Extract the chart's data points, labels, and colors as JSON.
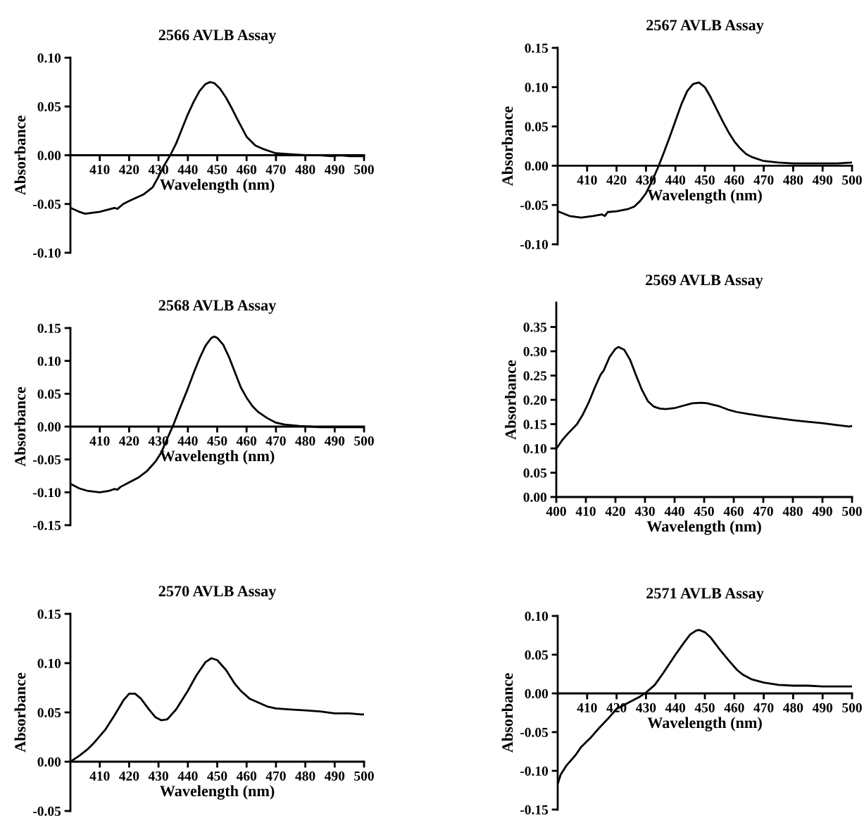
{
  "chart_data": [
    {
      "type": "line",
      "title": "2566 AVLB Assay",
      "xlabel": "Wavelength (nm)",
      "ylabel": "Absorbance",
      "xlim": [
        400,
        500
      ],
      "xticks": [
        410,
        420,
        430,
        440,
        450,
        460,
        470,
        480,
        490,
        500
      ],
      "ylim": [
        -0.1,
        0.1
      ],
      "yticks": [
        {
          "value": -0.1,
          "label": "-0.10"
        },
        {
          "value": -0.05,
          "label": "-0.05"
        },
        {
          "value": 0,
          "label": "0.00"
        },
        {
          "value": 0.05,
          "label": "0.05"
        },
        {
          "value": 0.1,
          "label": "0.10"
        }
      ],
      "grid": false,
      "legend": false,
      "series": [
        {
          "color": "#000000",
          "x": [
            400,
            403,
            405,
            410,
            415,
            416,
            418,
            420,
            425,
            428,
            430,
            432,
            434,
            436,
            438,
            440,
            442,
            444,
            446,
            447.5,
            449,
            451,
            453,
            455,
            457,
            460,
            463,
            466,
            468,
            470,
            475,
            480,
            485,
            489,
            492,
            495,
            500
          ],
          "values": [
            -0.054,
            -0.058,
            -0.06,
            -0.058,
            -0.054,
            -0.055,
            -0.05,
            -0.047,
            -0.04,
            -0.033,
            -0.022,
            -0.01,
            0.0,
            0.012,
            0.027,
            0.042,
            0.055,
            0.066,
            0.073,
            0.075,
            0.074,
            0.068,
            0.059,
            0.048,
            0.036,
            0.019,
            0.01,
            0.006,
            0.004,
            0.002,
            0.001,
            0.0,
            0.0,
            -0.001,
            0.0,
            -0.001,
            -0.001
          ]
        }
      ]
    },
    {
      "type": "line",
      "title": "2567 AVLB Assay",
      "xlabel": "Wavelength (nm)",
      "ylabel": "Absorbance",
      "xlim": [
        400,
        500
      ],
      "xticks": [
        410,
        420,
        430,
        440,
        450,
        460,
        470,
        480,
        490,
        500
      ],
      "ylim": [
        -0.1,
        0.15
      ],
      "yticks": [
        {
          "value": -0.1,
          "label": "-0.10"
        },
        {
          "value": -0.05,
          "label": "-0.05"
        },
        {
          "value": 0,
          "label": "0.00"
        },
        {
          "value": 0.05,
          "label": "0.05"
        },
        {
          "value": 0.1,
          "label": "0.10"
        },
        {
          "value": 0.15,
          "label": "0.15"
        }
      ],
      "grid": false,
      "legend": false,
      "series": [
        {
          "color": "#000000",
          "x": [
            400,
            404,
            408,
            412,
            415,
            416,
            417,
            420,
            424,
            426,
            428,
            430,
            432,
            434,
            436,
            438,
            440,
            442,
            444,
            446,
            448,
            450,
            452,
            454,
            456,
            458,
            460,
            462,
            464,
            466,
            470,
            475,
            480,
            490,
            495,
            500
          ],
          "values": [
            -0.058,
            -0.064,
            -0.066,
            -0.064,
            -0.062,
            -0.064,
            -0.059,
            -0.058,
            -0.055,
            -0.052,
            -0.045,
            -0.035,
            -0.02,
            -0.003,
            0.016,
            0.036,
            0.057,
            0.078,
            0.095,
            0.104,
            0.106,
            0.1,
            0.087,
            0.072,
            0.057,
            0.043,
            0.031,
            0.022,
            0.015,
            0.011,
            0.006,
            0.004,
            0.003,
            0.003,
            0.003,
            0.004
          ]
        }
      ]
    },
    {
      "type": "line",
      "title": "2568 AVLB Assay",
      "xlabel": "Wavelength (nm)",
      "ylabel": "Absorbance",
      "xlim": [
        400,
        500
      ],
      "xticks": [
        410,
        420,
        430,
        440,
        450,
        460,
        470,
        480,
        490,
        500
      ],
      "ylim": [
        -0.15,
        0.15
      ],
      "yticks": [
        {
          "value": -0.15,
          "label": "-0.15"
        },
        {
          "value": -0.1,
          "label": "-0.10"
        },
        {
          "value": -0.05,
          "label": "-0.05"
        },
        {
          "value": 0,
          "label": "0.00"
        },
        {
          "value": 0.05,
          "label": "0.05"
        },
        {
          "value": 0.1,
          "label": "0.10"
        },
        {
          "value": 0.15,
          "label": "0.15"
        }
      ],
      "grid": false,
      "legend": false,
      "series": [
        {
          "color": "#000000",
          "x": [
            400,
            403,
            406,
            410,
            413,
            415,
            416,
            417,
            420,
            423,
            426,
            429,
            431,
            433,
            435,
            437,
            440,
            442,
            444,
            446,
            448,
            449,
            450,
            452,
            454,
            456,
            458,
            460,
            462,
            464,
            467,
            470,
            473,
            478,
            485,
            490,
            500
          ],
          "values": [
            -0.087,
            -0.094,
            -0.098,
            -0.1,
            -0.098,
            -0.095,
            -0.096,
            -0.092,
            -0.085,
            -0.078,
            -0.068,
            -0.053,
            -0.039,
            -0.018,
            0.002,
            0.025,
            0.058,
            0.082,
            0.104,
            0.123,
            0.135,
            0.137,
            0.135,
            0.125,
            0.106,
            0.083,
            0.06,
            0.044,
            0.031,
            0.022,
            0.013,
            0.006,
            0.003,
            0.001,
            -0.001,
            -0.001,
            -0.001
          ]
        }
      ]
    },
    {
      "type": "line",
      "title": "2569 AVLB Assay",
      "xlabel": "Wavelength (nm)",
      "ylabel": "Absorbance",
      "xlim": [
        400,
        500
      ],
      "xticks": [
        400,
        410,
        420,
        430,
        440,
        450,
        460,
        470,
        480,
        490,
        500
      ],
      "ylim": [
        0,
        0.4
      ],
      "yticks": [
        {
          "value": 0,
          "label": "0.00"
        },
        {
          "value": 0.05,
          "label": "0.05"
        },
        {
          "value": 0.1,
          "label": "0.10"
        },
        {
          "value": 0.15,
          "label": "0.15"
        },
        {
          "value": 0.2,
          "label": "0.20"
        },
        {
          "value": 0.25,
          "label": "0.25"
        },
        {
          "value": 0.3,
          "label": "0.30"
        },
        {
          "value": 0.35,
          "label": "0.35"
        }
      ],
      "grid": false,
      "legend": false,
      "series": [
        {
          "color": "#000000",
          "x": [
            400,
            402,
            404,
            407,
            409,
            411,
            413,
            415,
            416,
            418,
            420,
            421,
            423,
            425,
            427,
            429,
            431,
            433,
            435,
            437,
            440,
            443,
            446,
            449,
            451,
            455,
            458,
            461,
            465,
            470,
            475,
            480,
            485,
            490,
            495,
            499,
            500
          ],
          "values": [
            0.099,
            0.117,
            0.131,
            0.15,
            0.17,
            0.195,
            0.225,
            0.252,
            0.26,
            0.288,
            0.305,
            0.309,
            0.303,
            0.282,
            0.25,
            0.22,
            0.197,
            0.186,
            0.182,
            0.181,
            0.183,
            0.188,
            0.193,
            0.194,
            0.193,
            0.187,
            0.18,
            0.175,
            0.171,
            0.166,
            0.162,
            0.158,
            0.155,
            0.152,
            0.148,
            0.145,
            0.146
          ]
        }
      ]
    },
    {
      "type": "line",
      "title": "2570 AVLB Assay",
      "xlabel": "Wavelength (nm)",
      "ylabel": "Absorbance",
      "xlim": [
        400,
        500
      ],
      "xticks": [
        410,
        420,
        430,
        440,
        450,
        460,
        470,
        480,
        490,
        500
      ],
      "ylim": [
        -0.05,
        0.15
      ],
      "yticks": [
        {
          "value": -0.05,
          "label": "-0.05"
        },
        {
          "value": 0,
          "label": "0.00"
        },
        {
          "value": 0.05,
          "label": "0.05"
        },
        {
          "value": 0.1,
          "label": "0.10"
        },
        {
          "value": 0.15,
          "label": "0.15"
        }
      ],
      "grid": false,
      "legend": false,
      "series": [
        {
          "color": "#000000",
          "x": [
            400,
            403,
            406,
            408,
            412,
            415,
            418,
            420,
            422,
            424,
            427,
            429,
            431,
            433,
            436,
            440,
            443,
            446,
            448,
            450,
            453,
            456,
            458,
            461,
            464,
            467,
            470,
            475,
            480,
            485,
            490,
            495,
            499,
            500
          ],
          "values": [
            0.0,
            0.006,
            0.013,
            0.019,
            0.033,
            0.047,
            0.062,
            0.069,
            0.069,
            0.064,
            0.052,
            0.045,
            0.042,
            0.043,
            0.053,
            0.072,
            0.088,
            0.101,
            0.105,
            0.103,
            0.093,
            0.079,
            0.072,
            0.064,
            0.06,
            0.056,
            0.054,
            0.053,
            0.052,
            0.051,
            0.049,
            0.049,
            0.048,
            0.048
          ]
        }
      ]
    },
    {
      "type": "line",
      "title": "2571 AVLB Assay",
      "xlabel": "Wavelength (nm)",
      "ylabel": "Absorbance",
      "xlim": [
        400,
        500
      ],
      "xticks": [
        410,
        420,
        430,
        440,
        450,
        460,
        470,
        480,
        490,
        500
      ],
      "ylim": [
        -0.15,
        0.1
      ],
      "yticks": [
        {
          "value": -0.15,
          "label": "-0.15"
        },
        {
          "value": -0.1,
          "label": "-0.10"
        },
        {
          "value": -0.05,
          "label": "-0.05"
        },
        {
          "value": 0,
          "label": "0.00"
        },
        {
          "value": 0.05,
          "label": "0.05"
        },
        {
          "value": 0.1,
          "label": "0.10"
        }
      ],
      "grid": false,
      "legend": false,
      "series": [
        {
          "color": "#000000",
          "x": [
            400,
            401,
            403,
            406,
            408,
            411,
            414,
            417,
            420,
            424,
            428,
            430,
            433,
            436,
            440,
            443,
            445,
            447,
            448,
            450,
            452,
            455,
            458,
            461,
            463,
            466,
            470,
            475,
            480,
            485,
            490,
            495,
            500
          ],
          "values": [
            -0.117,
            -0.105,
            -0.093,
            -0.08,
            -0.069,
            -0.058,
            -0.045,
            -0.033,
            -0.02,
            -0.012,
            -0.004,
            0.001,
            0.011,
            0.027,
            0.05,
            0.066,
            0.076,
            0.081,
            0.082,
            0.079,
            0.072,
            0.057,
            0.043,
            0.03,
            0.024,
            0.018,
            0.014,
            0.011,
            0.01,
            0.01,
            0.009,
            0.009,
            0.009
          ]
        }
      ]
    }
  ]
}
